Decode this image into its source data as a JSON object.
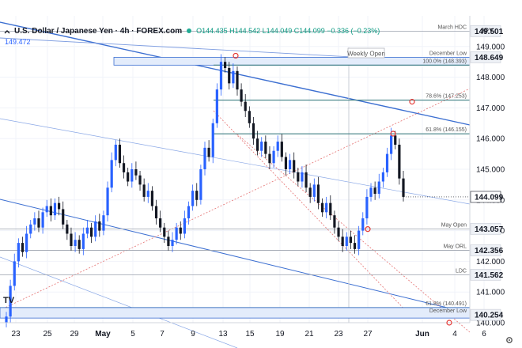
{
  "header": {
    "symbol": "U.S. Dollar / Japanese Yen · 4h · FOREX.com",
    "ohlc": "O144.435 H144.542 L144.049 C144.099 −0.336 (−0.23%)",
    "sub_value": "149.472",
    "currency": "JPY"
  },
  "badge": "TV",
  "chart_data": {
    "type": "candlestick",
    "title": "U.S. Dollar / Japanese Yen · 4h · FOREX.com",
    "ylim": [
      140,
      150
    ],
    "y_ticks": [
      140,
      141,
      142,
      143,
      144,
      145,
      146,
      147,
      148,
      149
    ],
    "x_ticks": [
      "23",
      "25",
      "29",
      "May",
      "5",
      "7",
      "9",
      "13",
      "15",
      "19",
      "21",
      "23",
      "27",
      "Jun",
      "4",
      "6"
    ],
    "last_price": "144.099",
    "levels": [
      {
        "label": "March HDC",
        "value": 149.501,
        "tag": "149.501"
      },
      {
        "label": "December Low",
        "value": 148.649,
        "tag": "148.649"
      },
      {
        "label": "100.0% (148.393)",
        "value": 148.393
      },
      {
        "label": "78.6% (147.253)",
        "value": 147.253
      },
      {
        "label": "61.8% (146.155)",
        "value": 146.155
      },
      {
        "label": "May Open",
        "value": 143.057,
        "tag": "143.057"
      },
      {
        "label": "May ORL",
        "value": 142.356,
        "tag": "142.356"
      },
      {
        "label": "LDC",
        "value": 141.562,
        "tag": "141.562"
      },
      {
        "label": "61.8% (140.491)",
        "value": 140.491
      },
      {
        "label": "December Low",
        "value": 140.254,
        "tag": "140.254"
      }
    ],
    "annotations": [
      "Weekly Open"
    ],
    "series": [
      {
        "name": "USD/JPY",
        "closes": [
          140.2,
          141.2,
          142.0,
          142.6,
          142.3,
          142.9,
          143.2,
          143.4,
          143.1,
          143.6,
          143.8,
          143.5,
          143.9,
          143.7,
          143.2,
          142.9,
          142.5,
          142.7,
          142.4,
          142.9,
          143.1,
          142.8,
          143.3,
          143.0,
          143.5,
          144.4,
          145.3,
          145.8,
          145.2,
          144.9,
          144.6,
          145.0,
          144.8,
          144.5,
          144.1,
          144.3,
          143.8,
          143.4,
          143.1,
          142.8,
          142.5,
          142.7,
          143.1,
          142.9,
          143.4,
          143.8,
          144.3,
          144.0,
          145.0,
          145.7,
          145.4,
          146.5,
          147.6,
          148.5,
          148.3,
          147.8,
          148.2,
          147.6,
          147.2,
          146.9,
          146.5,
          146.0,
          145.6,
          145.9,
          145.5,
          145.2,
          145.6,
          145.9,
          145.4,
          145.0,
          145.3,
          144.9,
          144.6,
          144.9,
          144.4,
          144.1,
          144.5,
          143.9,
          143.6,
          143.9,
          143.5,
          143.1,
          142.8,
          142.5,
          142.8,
          142.6,
          142.4,
          143.0,
          143.4,
          144.1,
          144.4,
          144.2,
          144.6,
          144.9,
          145.5,
          146.1,
          145.8,
          144.7,
          144.1
        ],
        "first_open": 140.0
      }
    ]
  }
}
